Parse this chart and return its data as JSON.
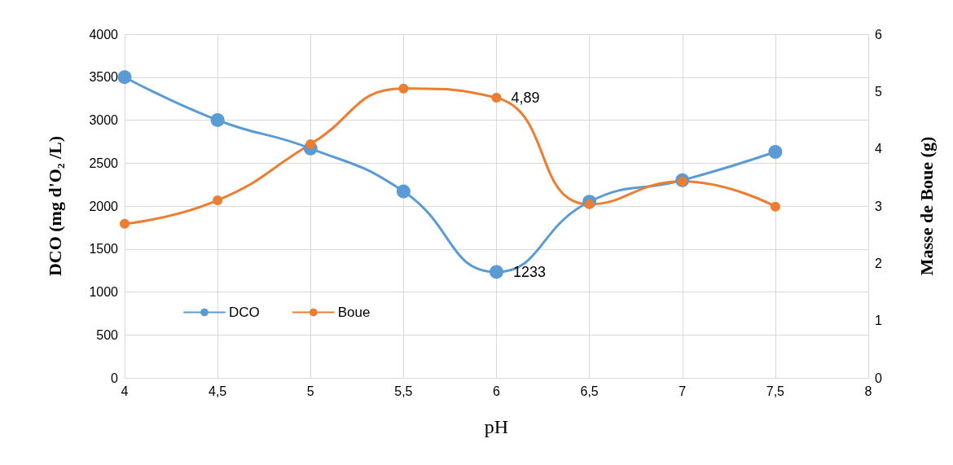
{
  "chart_data": {
    "type": "line",
    "xlabel": "pH",
    "ylabel": "DCO (mg d'O₂ /L)",
    "y2label": "Masse de Boue (g)",
    "x": [
      4,
      4.5,
      5,
      5.5,
      6,
      6.5,
      7,
      7.5
    ],
    "series": [
      {
        "name": "DCO",
        "color": "#5b9bd5",
        "values": [
          3500,
          3000,
          2670,
          2170,
          1233,
          2050,
          2300,
          2630
        ],
        "value_labels": [
          null,
          null,
          null,
          null,
          "1233",
          null,
          null,
          null
        ]
      },
      {
        "name": "Boue",
        "color": "#ed7d31",
        "axis": "y2",
        "values": [
          2.69,
          3.1,
          4.08,
          5.05,
          4.89,
          3.03,
          3.43,
          2.99
        ],
        "value_labels": [
          null,
          null,
          null,
          null,
          "4,89",
          null,
          null,
          null
        ]
      }
    ],
    "xlim": [
      4,
      8
    ],
    "xticks": [
      4,
      {
        "value": 4.5,
        "label": "4,5"
      },
      5,
      {
        "value": 5.5,
        "label": "5,5"
      },
      6,
      {
        "value": 6.5,
        "label": "6,5"
      },
      7,
      {
        "value": 7.5,
        "label": "7,5"
      },
      8
    ],
    "ylim": [
      0,
      4000
    ],
    "yticks": [
      0,
      500,
      1000,
      1500,
      2000,
      2500,
      3000,
      3500,
      4000
    ],
    "y2lim": [
      0,
      6
    ],
    "y2ticks": [
      0,
      1,
      2,
      3,
      4,
      5,
      6
    ],
    "grid": true,
    "legend": "bottom left",
    "marker": "circle",
    "line_style": "solid"
  }
}
